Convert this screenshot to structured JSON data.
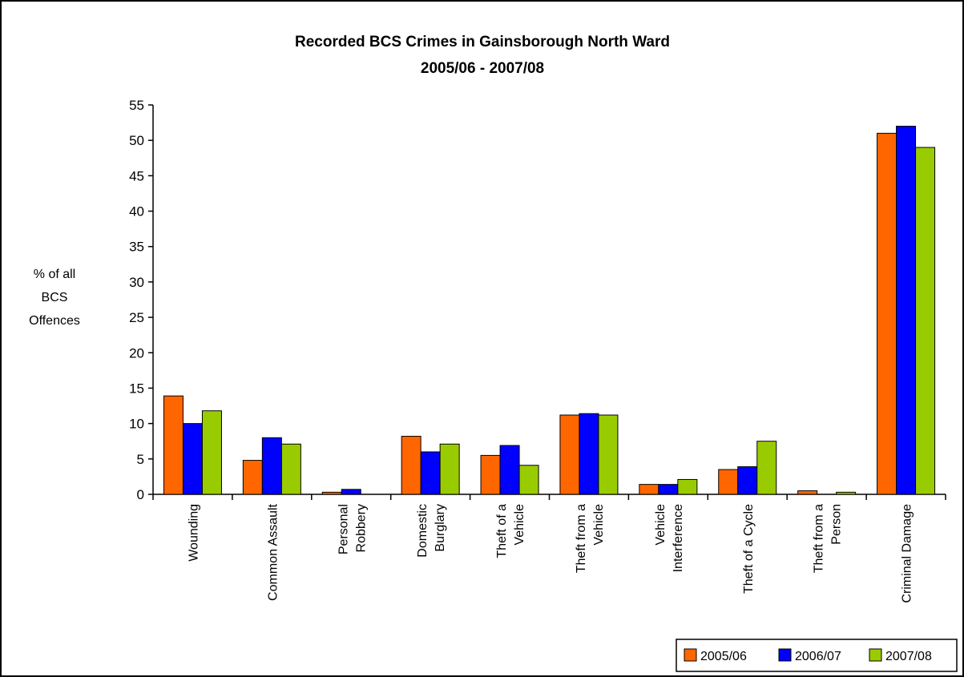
{
  "chart_data": {
    "type": "bar",
    "title": [
      "Recorded BCS Crimes in Gainsborough North Ward",
      "2005/06 - 2007/08"
    ],
    "xlabel": "",
    "ylabel": [
      "% of all",
      "BCS",
      "Offences"
    ],
    "ylim": [
      0,
      55
    ],
    "yticks": [
      "0",
      "5",
      "10",
      "15",
      "20",
      "25",
      "30",
      "35",
      "40",
      "45",
      "50",
      "55"
    ],
    "grid": false,
    "legend_position": "bottom-right",
    "categories": [
      [
        "Wounding"
      ],
      [
        "Common Assault"
      ],
      [
        "Personal",
        "Robbery"
      ],
      [
        "Domestic",
        "Burglary"
      ],
      [
        "Theft of a",
        "Vehicle"
      ],
      [
        "Theft from a",
        "Vehicle"
      ],
      [
        "Vehicle",
        "Interference"
      ],
      [
        "Theft of a Cycle"
      ],
      [
        "Theft from a",
        "Person"
      ],
      [
        "Criminal Damage"
      ]
    ],
    "series": [
      {
        "name": "2005/06",
        "color": "#ff6600",
        "values": [
          13.9,
          4.8,
          0.3,
          8.2,
          5.5,
          11.2,
          1.4,
          3.5,
          0.5,
          51
        ]
      },
      {
        "name": "2006/07",
        "color": "#0000ff",
        "values": [
          10.0,
          8.0,
          0.7,
          6.0,
          6.9,
          11.4,
          1.4,
          3.9,
          0.0,
          52
        ]
      },
      {
        "name": "2007/08",
        "color": "#99cc00",
        "values": [
          11.8,
          7.1,
          0.0,
          7.1,
          4.1,
          11.2,
          2.1,
          7.5,
          0.3,
          49
        ]
      }
    ]
  }
}
